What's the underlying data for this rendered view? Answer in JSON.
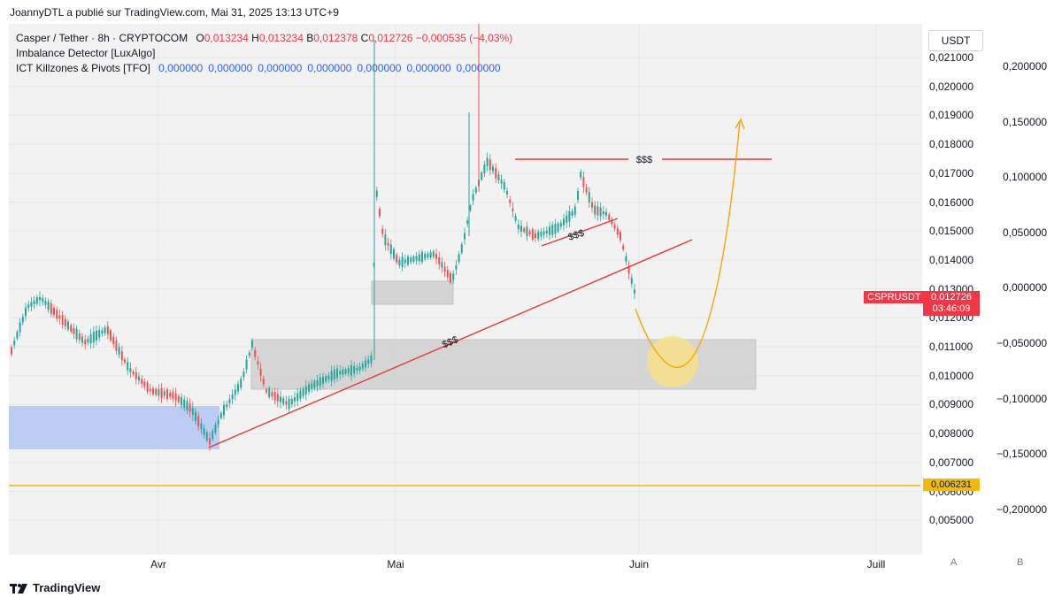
{
  "header": {
    "publisher": "JoannyDTL a publié sur TradingView.com, Mai 31, 2025 13:13 UTC+9"
  },
  "legend": {
    "symbol": "Casper / Tether · 8h · CRYPTOCOM",
    "o_key": "O",
    "o_val": "0,013234",
    "h_key": "H",
    "h_val": "0,013234",
    "b_key": "B",
    "b_val": "0,012378",
    "c_key": "C",
    "c_val": "0,012726",
    "change": "−0,000535 (−4,03%)",
    "indicator1": "Imbalance Detector [LuxAlgo]",
    "indicator2": "ICT Killzones & Pivots [TFO]",
    "indicator2_values": [
      "0,000000",
      "0,000000",
      "0,000000",
      "0,000000",
      "0,000000",
      "0,000000",
      "0,000000"
    ]
  },
  "currency_button": "USDT",
  "price_scale": [
    "0,021000",
    "0,020000",
    "0,019000",
    "0,018000",
    "0,017000",
    "0,016000",
    "0,015000",
    "0,014000",
    "0,013000",
    "0,012000",
    "0,011000",
    "0,010000",
    "0,009000",
    "0,008000",
    "0,007000",
    "0,006000",
    "0,005000"
  ],
  "indicator_scale": [
    "0,200000",
    "0,150000",
    "0,100000",
    "0,050000",
    "0,000000",
    "−0,050000",
    "−0,100000",
    "−0,150000",
    "−0,200000"
  ],
  "time_axis": [
    "Avr",
    "Mai",
    "Juin",
    "Juill"
  ],
  "scale_buttons": [
    "A",
    "B"
  ],
  "symbol_tag": {
    "name": "CSPRUSDT",
    "price": "0,012726",
    "countdown": "03:46:09",
    "color": "#f23645"
  },
  "level_tag": {
    "price": "0,006231",
    "color": "#f0b90b"
  },
  "annotations": {
    "liquidity_top": "$$$",
    "liquidity_mid": "$$$",
    "liquidity_trend": "$$$"
  },
  "colors": {
    "bull": "#26a69a",
    "bear": "#ef5350",
    "projection": "#f7a600",
    "trendline": "#e53935",
    "demand_zone": "#b3c7f5"
  },
  "footer": {
    "brand": "TradingView"
  }
}
